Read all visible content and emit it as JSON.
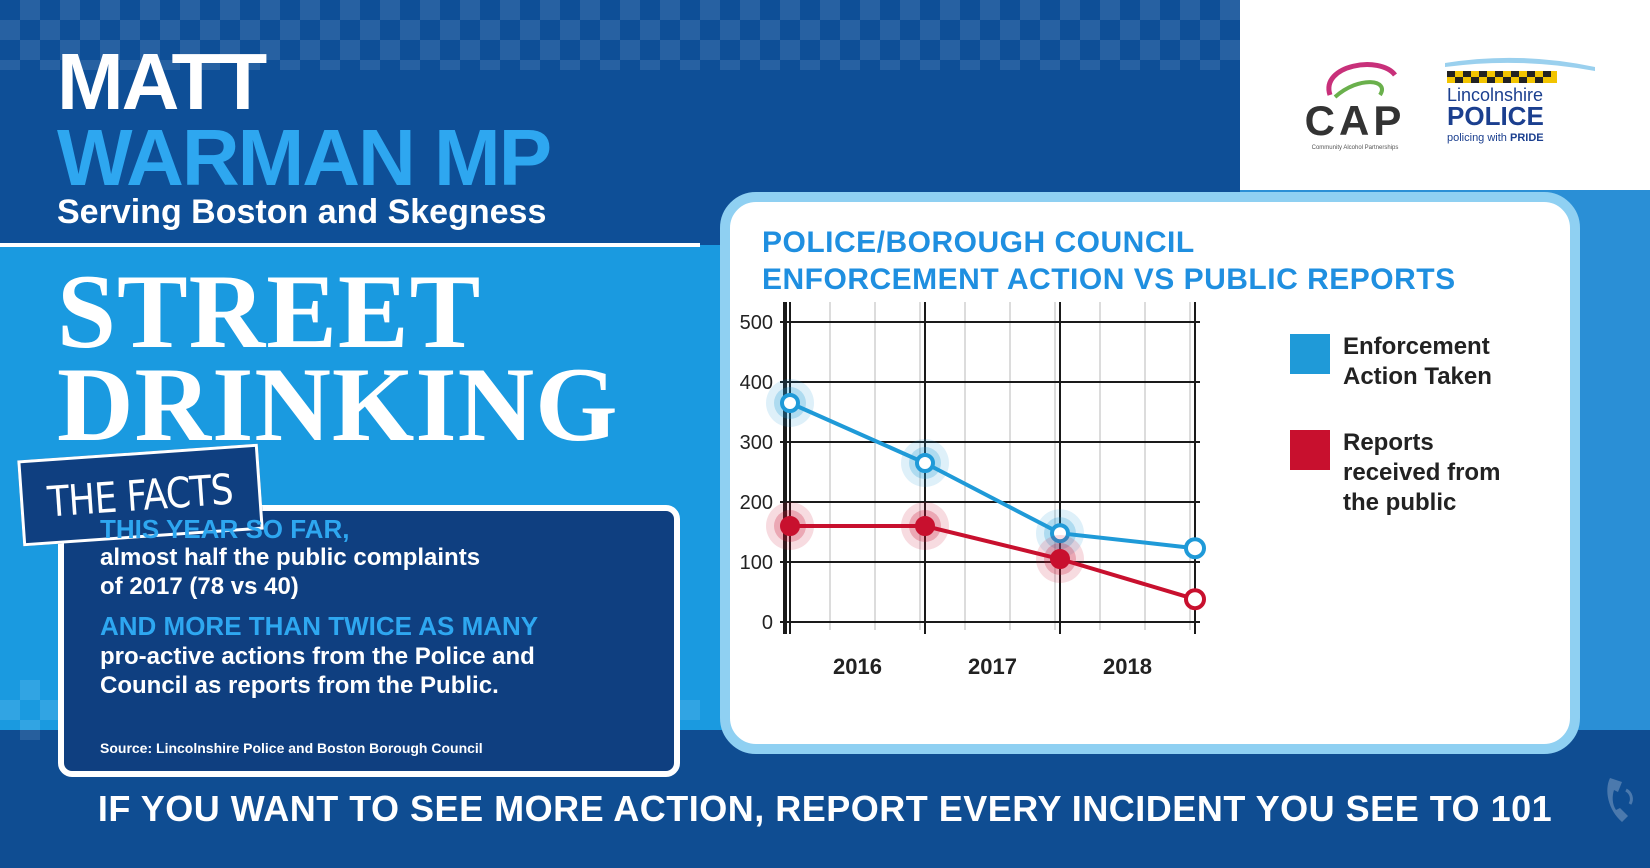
{
  "header": {
    "name_line1": "MATT",
    "name_line2": "WARMAN MP",
    "subtitle": "Serving Boston and Skegness"
  },
  "headline": {
    "line1": "STREET",
    "line2": "DRINKING",
    "tag": "THE FACTS"
  },
  "facts": {
    "head1": "THIS YEAR SO FAR,",
    "line1": "almost half the public complaints",
    "line2": "of 2017 (78 vs 40)",
    "head2": "AND MORE THAN TWICE AS MANY",
    "line3": "pro-active actions from the Police and",
    "line4": "Council as reports from the Public.",
    "source": "Source: Lincolnshire Police and Boston Borough Council"
  },
  "logos": {
    "cap_text": "CAP",
    "cap_sub": "Community Alcohol Partnerships",
    "police_line1": "Lincolnshire",
    "police_line2": "POLICE",
    "police_line3a": "policing with ",
    "police_line3b": "PRIDE"
  },
  "cta": {
    "text": "IF YOU WANT TO SEE MORE ACTION, REPORT EVERY INCIDENT YOU SEE TO ",
    "number": "101"
  },
  "colors": {
    "dark_blue": "#0e4f97",
    "bright_blue": "#1a9ae0",
    "enforcement": "#1f9ad8",
    "reports": "#c8102e"
  },
  "chart_data": {
    "type": "line",
    "title_line1": "POLICE/BOROUGH COUNCIL",
    "title_line2": "ENFORCEMENT ACTION VS PUBLIC REPORTS",
    "xlabel": "",
    "ylabel": "",
    "x": [
      0,
      1,
      2,
      3
    ],
    "x_tick_labels": [
      "2016",
      "2017",
      "2018"
    ],
    "ylim": [
      0,
      500
    ],
    "y_ticks": [
      "0",
      "100",
      "200",
      "300",
      "400",
      "500"
    ],
    "grid": true,
    "legend_position": "right",
    "series": [
      {
        "name": "Enforcement Action Taken",
        "legend_line1": "Enforcement",
        "legend_line2": "Action Taken",
        "values": [
          365,
          265,
          148,
          123
        ],
        "color": "#1f9ad8"
      },
      {
        "name": "Reports received from the public",
        "legend_line1": "Reports",
        "legend_line2": "received from",
        "legend_line3": "the public",
        "values": [
          160,
          160,
          105,
          38
        ],
        "color": "#c8102e"
      }
    ]
  }
}
